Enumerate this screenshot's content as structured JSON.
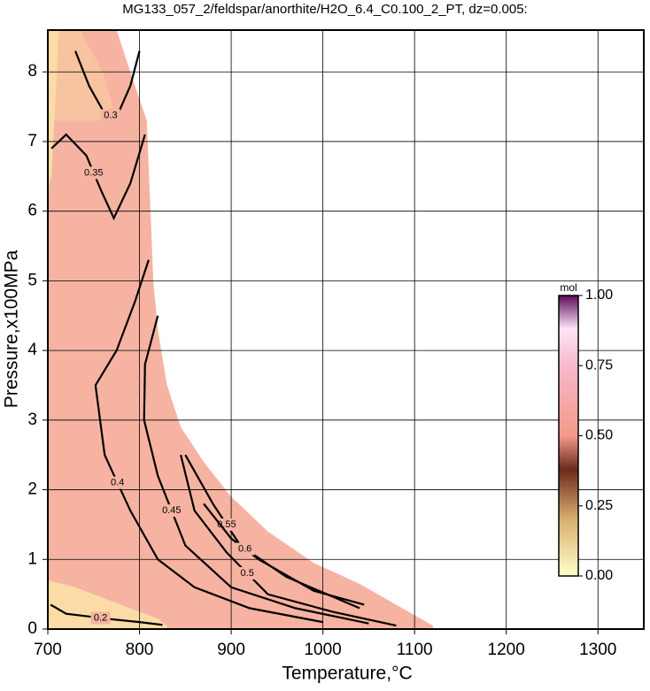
{
  "chart_data": {
    "type": "contour",
    "title": "MG133_057_2/feldspar/anorthite/H2O_6.4_C0.100_2_PT, dz=0.005:",
    "x_label": "Temperature,°C",
    "y_label": "Pressure,x100MPa",
    "xlim": [
      700,
      1350
    ],
    "ylim": [
      0,
      8.6
    ],
    "xticks": [
      700,
      800,
      900,
      1000,
      1100,
      1200,
      1300
    ],
    "yticks": [
      0,
      1,
      2,
      3,
      4,
      5,
      6,
      7,
      8
    ],
    "grid": true,
    "fills": [
      {
        "color": "#f6b3a2",
        "x": [
          700,
          775,
          790,
          808,
          812,
          815,
          820,
          830,
          845,
          870,
          900,
          940,
          990,
          1040,
          1080,
          1120,
          1120,
          700
        ],
        "y": [
          8.6,
          8.6,
          8.0,
          7.3,
          6.0,
          5.0,
          4.3,
          3.5,
          2.9,
          2.4,
          1.9,
          1.4,
          0.95,
          0.65,
          0.35,
          0.05,
          0,
          0
        ]
      },
      {
        "color": "#f8c3a0",
        "x": [
          700,
          735,
          760,
          775,
          700
        ],
        "y": [
          8.6,
          8.6,
          8.0,
          7.3,
          7.3
        ]
      },
      {
        "color": "#fbdca6",
        "x": [
          700,
          712,
          708,
          704,
          700
        ],
        "y": [
          8.6,
          8.6,
          7.5,
          6.5,
          6.3
        ]
      },
      {
        "color": "#fbdca6",
        "x": [
          700,
          730,
          760,
          790,
          820,
          830,
          830,
          700
        ],
        "y": [
          0.7,
          0.6,
          0.45,
          0.3,
          0.15,
          0.05,
          0,
          0
        ]
      }
    ],
    "contours": [
      {
        "level": 0.2,
        "x": [
          703,
          720,
          745,
          770,
          800,
          825
        ],
        "y": [
          0.35,
          0.22,
          0.18,
          0.14,
          0.1,
          0.06
        ]
      },
      {
        "level": 0.3,
        "x": [
          730,
          745,
          762,
          775,
          790,
          800
        ],
        "y": [
          8.3,
          7.8,
          7.4,
          7.35,
          7.8,
          8.3
        ]
      },
      {
        "level": 0.35,
        "x": [
          704,
          720,
          742,
          758,
          772,
          790,
          806
        ],
        "y": [
          6.9,
          7.1,
          6.8,
          6.3,
          5.9,
          6.4,
          7.1
        ]
      },
      {
        "level": 0.4,
        "x": [
          810,
          795,
          775,
          752,
          762,
          790,
          820,
          860,
          920,
          1000
        ],
        "y": [
          5.3,
          4.7,
          4.0,
          3.5,
          2.5,
          1.7,
          1.0,
          0.6,
          0.3,
          0.1
        ]
      },
      {
        "level": 0.45,
        "x": [
          820,
          806,
          805,
          820,
          850,
          900,
          970,
          1050
        ],
        "y": [
          4.5,
          3.8,
          3.0,
          2.2,
          1.2,
          0.6,
          0.3,
          0.08
        ]
      },
      {
        "level": 0.5,
        "x": [
          845,
          860,
          895,
          940,
          1010,
          1080
        ],
        "y": [
          2.5,
          1.7,
          1.1,
          0.5,
          0.25,
          0.05
        ]
      },
      {
        "level": 0.55,
        "x": [
          850,
          880,
          910,
          960,
          1040
        ],
        "y": [
          2.5,
          1.8,
          1.2,
          0.75,
          0.3
        ]
      },
      {
        "level": 0.6,
        "x": [
          870,
          900,
          930,
          990,
          1045
        ],
        "y": [
          1.8,
          1.3,
          1.0,
          0.55,
          0.35
        ]
      }
    ],
    "colorbar": {
      "label": "mol",
      "zlim": [
        0,
        1
      ],
      "zticks": [
        {
          "value": 0,
          "label": "0.00"
        },
        {
          "value": 0.25,
          "label": "0.25"
        },
        {
          "value": 0.5,
          "label": "0.50"
        },
        {
          "value": 0.75,
          "label": "0.75"
        },
        {
          "value": 1,
          "label": "1.00"
        }
      ],
      "colorscale": [
        [
          0,
          "#ffffc8"
        ],
        [
          0.2,
          "#d9b070"
        ],
        [
          0.38,
          "#6b2a1c"
        ],
        [
          0.5,
          "#f39a88"
        ],
        [
          0.75,
          "#f7b8cc"
        ],
        [
          0.88,
          "#fde6f6"
        ],
        [
          1,
          "#5c0a5a"
        ]
      ]
    }
  }
}
